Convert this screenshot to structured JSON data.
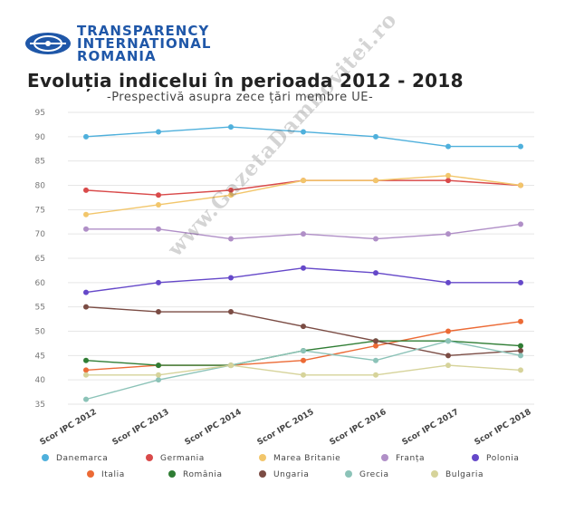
{
  "logo": {
    "line1": "TRANSPARENCY",
    "line2": "INTERNATIONAL",
    "line3": "ROMANIA"
  },
  "watermark": "www.GazetaDambovitei.ro",
  "chart_data": {
    "type": "line",
    "title": "Evoluția indicelui în perioada 2012 - 2018",
    "subtitle": "-Prespectivă asupra zece țări membre UE-",
    "xlabel": "",
    "ylabel": "",
    "ylim": [
      35,
      95
    ],
    "yticks": [
      35,
      40,
      45,
      50,
      55,
      60,
      65,
      70,
      75,
      80,
      85,
      90,
      95
    ],
    "grid": true,
    "legend_position": "bottom",
    "categories": [
      "Scor IPC 2012",
      "Scor IPC 2013",
      "Scor IPC 2014",
      "Scor IPC 2015",
      "Scor IPC 2016",
      "Scor IPC 2017",
      "Scor IPC 2018"
    ],
    "series": [
      {
        "name": "Danemarca",
        "color": "#4fb0dc",
        "values": [
          90,
          91,
          92,
          91,
          90,
          88,
          88
        ]
      },
      {
        "name": "Germania",
        "color": "#d94a4a",
        "values": [
          79,
          78,
          79,
          81,
          81,
          81,
          80
        ]
      },
      {
        "name": "Marea Britanie",
        "color": "#f2c66b",
        "values": [
          74,
          76,
          78,
          81,
          81,
          82,
          80
        ]
      },
      {
        "name": "Franța",
        "color": "#b08fc7",
        "values": [
          71,
          71,
          69,
          70,
          69,
          70,
          72
        ]
      },
      {
        "name": "Polonia",
        "color": "#6548c9",
        "values": [
          58,
          60,
          61,
          63,
          62,
          60,
          60
        ]
      },
      {
        "name": "Italia",
        "color": "#ec6a35",
        "values": [
          42,
          43,
          43,
          44,
          47,
          50,
          52
        ]
      },
      {
        "name": "România",
        "color": "#2f7d34",
        "values": [
          44,
          43,
          43,
          46,
          48,
          48,
          47
        ]
      },
      {
        "name": "Ungaria",
        "color": "#7b4c44",
        "values": [
          55,
          54,
          54,
          51,
          48,
          45,
          46
        ]
      },
      {
        "name": "Grecia",
        "color": "#8cc3b8",
        "values": [
          36,
          40,
          43,
          46,
          44,
          48,
          45
        ]
      },
      {
        "name": "Bulgaria",
        "color": "#d6d39a",
        "values": [
          41,
          41,
          43,
          41,
          41,
          43,
          42
        ]
      }
    ]
  }
}
